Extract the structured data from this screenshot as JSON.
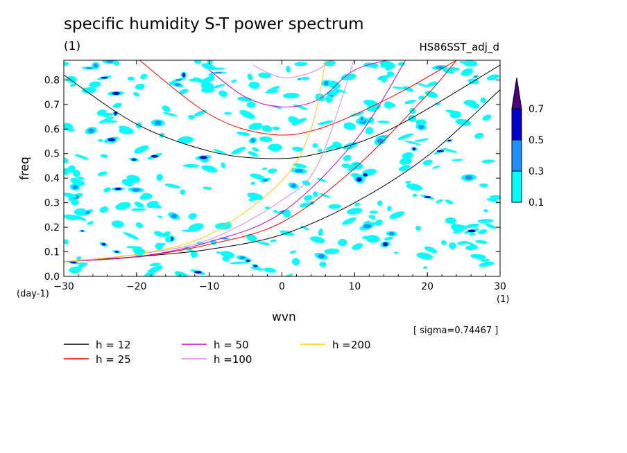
{
  "title": "specific humidity S-T power spectrum",
  "subtitle": "(1)",
  "run_name": "HS86SST_adj_d",
  "sigma_note": "[ sigma=0.74467 ]",
  "chart_data": {
    "type": "heatmap",
    "xlabel": "wvn",
    "ylabel": "freq",
    "x_unit": "(1)",
    "y_unit": "(day-1)",
    "xlim": [
      -30,
      30
    ],
    "ylim": [
      0,
      0.88
    ],
    "x_ticks": [
      -30,
      -20,
      -10,
      0,
      10,
      20,
      30
    ],
    "y_ticks": [
      0.0,
      0.1,
      0.2,
      0.3,
      0.4,
      0.5,
      0.6,
      0.7,
      0.8
    ],
    "contour_levels": [
      0.1,
      0.3,
      0.5,
      0.7
    ],
    "colorbar_labels": [
      "0.1",
      "0.3",
      "0.5",
      "0.7"
    ],
    "colors": [
      "#00ffff",
      "#1e90ff",
      "#0000cd",
      "#4b0082"
    ],
    "dispersion_curves": [
      {
        "name": "h = 12",
        "color": "#000000",
        "points": [
          [
            -30,
            0.82
          ],
          [
            -20,
            0.62
          ],
          [
            -10,
            0.51
          ],
          [
            -2,
            0.48
          ],
          [
            5,
            0.5
          ],
          [
            15,
            0.6
          ],
          [
            30,
            0.86
          ]
        ],
        "kelvin": [
          [
            -30,
            0.06
          ],
          [
            -20,
            0.08
          ],
          [
            -10,
            0.11
          ],
          [
            0,
            0.17
          ],
          [
            10,
            0.3
          ],
          [
            20,
            0.49
          ],
          [
            30,
            0.76
          ]
        ]
      },
      {
        "name": "h = 25",
        "color": "#ff0000",
        "points": [
          [
            -20,
            0.89
          ],
          [
            -10,
            0.66
          ],
          [
            -2,
            0.58
          ],
          [
            5,
            0.6
          ],
          [
            15,
            0.73
          ],
          [
            24,
            0.88
          ]
        ],
        "kelvin": [
          [
            -30,
            0.06
          ],
          [
            -20,
            0.08
          ],
          [
            -10,
            0.13
          ],
          [
            0,
            0.22
          ],
          [
            10,
            0.44
          ],
          [
            20,
            0.74
          ],
          [
            24,
            0.88
          ]
        ]
      },
      {
        "name": "h = 50",
        "color": "#cc00cc",
        "points": [
          [
            -10,
            0.84
          ],
          [
            -5,
            0.73
          ],
          [
            0,
            0.69
          ],
          [
            5,
            0.72
          ],
          [
            10,
            0.84
          ],
          [
            16,
            0.89
          ]
        ],
        "kelvin": [
          [
            -30,
            0.06
          ],
          [
            -20,
            0.08
          ],
          [
            -10,
            0.14
          ],
          [
            0,
            0.26
          ],
          [
            10,
            0.55
          ],
          [
            17,
            0.88
          ]
        ]
      },
      {
        "name": "h =100",
        "color": "#dd88dd",
        "points": [
          [
            -4,
            0.86
          ],
          [
            0,
            0.81
          ],
          [
            4,
            0.83
          ],
          [
            7,
            0.88
          ]
        ],
        "kelvin": [
          [
            -30,
            0.06
          ],
          [
            -20,
            0.09
          ],
          [
            -10,
            0.15
          ],
          [
            0,
            0.31
          ],
          [
            5,
            0.46
          ],
          [
            10,
            0.89
          ]
        ]
      },
      {
        "name": "h =200",
        "color": "#ffcc00",
        "points": [],
        "kelvin": [
          [
            -30,
            0.06
          ],
          [
            -20,
            0.09
          ],
          [
            -10,
            0.17
          ],
          [
            0,
            0.39
          ],
          [
            4,
            0.6
          ],
          [
            6,
            0.88
          ]
        ]
      }
    ]
  }
}
